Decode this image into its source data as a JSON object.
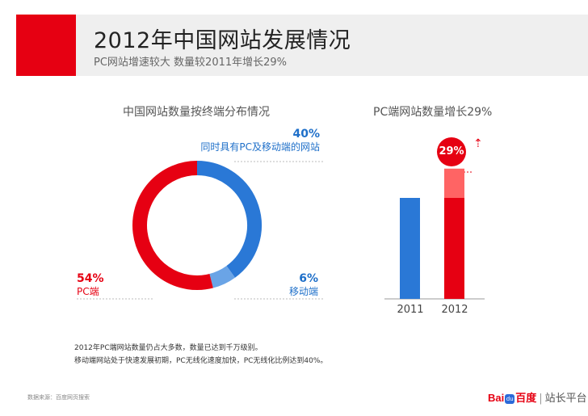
{
  "header": {
    "title": "2012年中国网站发展情况",
    "subtitle": "PC网站增速较大  数量较2011年增长29%"
  },
  "colors": {
    "brand_red": "#e60012",
    "blue": "#2a78d6",
    "light_blue": "#6aa4e6",
    "light_red": "#ff6464",
    "header_bg": "#efefef"
  },
  "chart_data": [
    {
      "type": "pie",
      "donut": true,
      "title": "中国网站数量按终端分布情况",
      "slices": [
        {
          "name": "同时具有PC及移动端的网站",
          "value": 40,
          "label": "40%",
          "color": "#2a78d6"
        },
        {
          "name": "移动端",
          "value": 6,
          "label": "6%",
          "color": "#6aa4e6"
        },
        {
          "name": "PC端",
          "value": 54,
          "label": "54%",
          "color": "#e60012"
        }
      ]
    },
    {
      "type": "bar",
      "title": "PC端网站数量增长29%",
      "categories": [
        "2011",
        "2012"
      ],
      "series": [
        {
          "values": [
            100,
            100
          ],
          "colors": [
            "#2a78d6",
            "#e60012"
          ]
        },
        {
          "values": [
            0,
            29
          ],
          "colors": [
            "#ff6464",
            "#ff6464"
          ]
        }
      ],
      "ylim": [
        0,
        160
      ],
      "annotation": "29%"
    }
  ],
  "notes": [
    "2012年PC端网站数量仍占大多数，数量已达到千万级别。",
    "移动端网站处于快速发展初期，PC无线化速度加快，PC无线化比例达到40%。"
  ],
  "source": "数据来源：百度网页搜索",
  "logo": {
    "bai": "Bai",
    "du": "du",
    "cn": "百度",
    "separator": "|",
    "platform": "站长平台"
  }
}
